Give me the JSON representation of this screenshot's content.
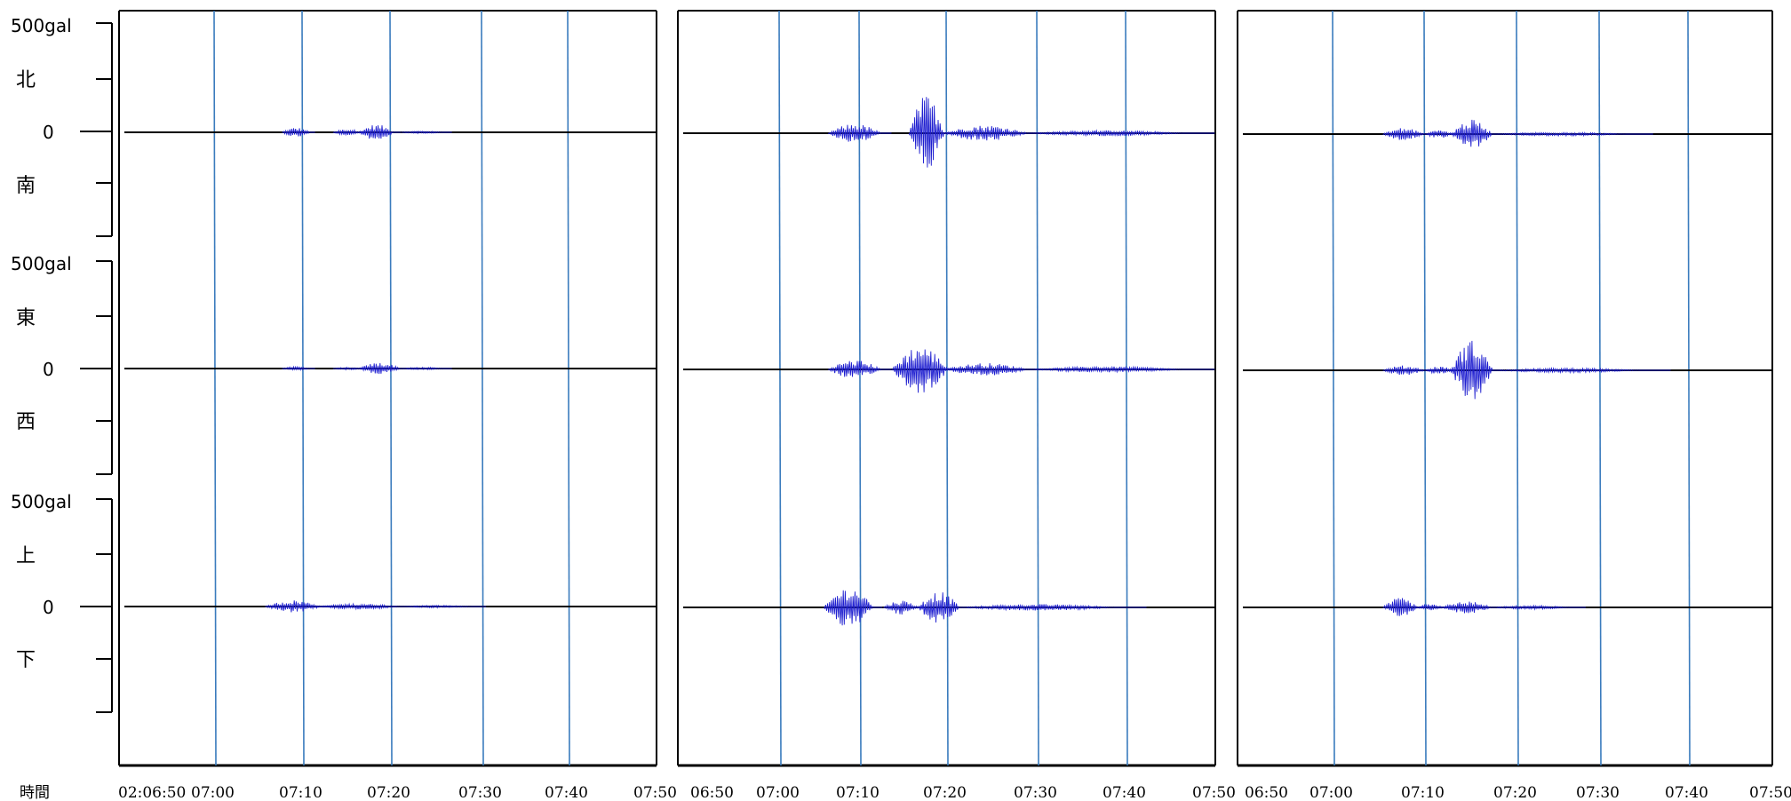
{
  "colors": {
    "waveform": "#1f1fd0",
    "gridline": "#3a7bbd",
    "axis": "#000000",
    "background": "#ffffff"
  },
  "y_axis": {
    "scale_label": "500gal",
    "zero_label": "0",
    "groups": [
      {
        "component": "north-south",
        "pos_label": "北",
        "neg_label": "南"
      },
      {
        "component": "east-west",
        "pos_label": "東",
        "neg_label": "西"
      },
      {
        "component": "up-down",
        "pos_label": "上",
        "neg_label": "下"
      }
    ]
  },
  "x_axis": {
    "time_label": "時間"
  },
  "chart_data": [
    {
      "type": "line",
      "panel": 1,
      "x_ticks": [
        "02:06:50",
        "07:00",
        "07:10",
        "07:20",
        "07:30",
        "07:40",
        "07:50"
      ],
      "x_range_minutes": [
        0,
        60
      ],
      "ylim_gal": [
        -500,
        500
      ],
      "series": [
        {
          "name": "北/南",
          "segments": [
            {
              "start_min": 16,
              "end_min": 20,
              "peak_gal": 30
            },
            {
              "start_min": 22,
              "end_min": 26,
              "peak_gal": 20
            },
            {
              "start_min": 25,
              "end_min": 30,
              "peak_gal": 50
            },
            {
              "start_min": 30,
              "end_min": 36,
              "peak_gal": 8
            }
          ]
        },
        {
          "name": "東/西",
          "segments": [
            {
              "start_min": 16,
              "end_min": 20,
              "peak_gal": 12
            },
            {
              "start_min": 22,
              "end_min": 26,
              "peak_gal": 8
            },
            {
              "start_min": 25,
              "end_min": 31,
              "peak_gal": 38
            },
            {
              "start_min": 30,
              "end_min": 36,
              "peak_gal": 8
            }
          ]
        },
        {
          "name": "上/下",
          "segments": [
            {
              "start_min": 14,
              "end_min": 22,
              "peak_gal": 40
            },
            {
              "start_min": 20,
              "end_min": 32,
              "peak_gal": 18
            },
            {
              "start_min": 30,
              "end_min": 40,
              "peak_gal": 8
            }
          ]
        }
      ]
    },
    {
      "type": "line",
      "panel": 2,
      "x_ticks": [
        "06:50",
        "07:00",
        "07:10",
        "07:20",
        "07:30",
        "07:40",
        "07:50"
      ],
      "x_range_minutes": [
        0,
        60
      ],
      "ylim_gal": [
        -500,
        500
      ],
      "series": [
        {
          "name": "北/南",
          "segments": [
            {
              "start_min": 14.5,
              "end_min": 22,
              "peak_gal": 60
            },
            {
              "start_min": 24,
              "end_min": 29,
              "peak_gal": 240
            },
            {
              "start_min": 28,
              "end_min": 40,
              "peak_gal": 50
            },
            {
              "start_min": 38,
              "end_min": 60,
              "peak_gal": 18
            }
          ]
        },
        {
          "name": "東/西",
          "segments": [
            {
              "start_min": 14.5,
              "end_min": 22,
              "peak_gal": 60
            },
            {
              "start_min": 22,
              "end_min": 30,
              "peak_gal": 150
            },
            {
              "start_min": 28,
              "end_min": 40,
              "peak_gal": 40
            },
            {
              "start_min": 38,
              "end_min": 60,
              "peak_gal": 18
            }
          ]
        },
        {
          "name": "上/下",
          "segments": [
            {
              "start_min": 14,
              "end_min": 21,
              "peak_gal": 130
            },
            {
              "start_min": 21,
              "end_min": 26,
              "peak_gal": 45
            },
            {
              "start_min": 25,
              "end_min": 31,
              "peak_gal": 100
            },
            {
              "start_min": 30,
              "end_min": 52,
              "peak_gal": 20
            }
          ]
        }
      ]
    },
    {
      "type": "line",
      "panel": 3,
      "x_ticks": [
        "06:50",
        "07:00",
        "07:10",
        "07:20",
        "07:30",
        "07:40",
        "07:50"
      ],
      "x_range_minutes": [
        0,
        60
      ],
      "ylim_gal": [
        -500,
        500
      ],
      "series": [
        {
          "name": "北/南",
          "segments": [
            {
              "start_min": 14,
              "end_min": 20,
              "peak_gal": 40
            },
            {
              "start_min": 19,
              "end_min": 23,
              "peak_gal": 25
            },
            {
              "start_min": 22,
              "end_min": 28,
              "peak_gal": 90
            },
            {
              "start_min": 27,
              "end_min": 46,
              "peak_gal": 12
            }
          ]
        },
        {
          "name": "東/西",
          "segments": [
            {
              "start_min": 14,
              "end_min": 20,
              "peak_gal": 30
            },
            {
              "start_min": 19,
              "end_min": 23,
              "peak_gal": 25
            },
            {
              "start_min": 22,
              "end_min": 28,
              "peak_gal": 190
            },
            {
              "start_min": 27,
              "end_min": 48,
              "peak_gal": 14
            }
          ]
        },
        {
          "name": "上/下",
          "segments": [
            {
              "start_min": 14,
              "end_min": 19,
              "peak_gal": 60
            },
            {
              "start_min": 18,
              "end_min": 22,
              "peak_gal": 20
            },
            {
              "start_min": 21,
              "end_min": 28,
              "peak_gal": 40
            },
            {
              "start_min": 27,
              "end_min": 38,
              "peak_gal": 12
            }
          ]
        }
      ]
    }
  ]
}
